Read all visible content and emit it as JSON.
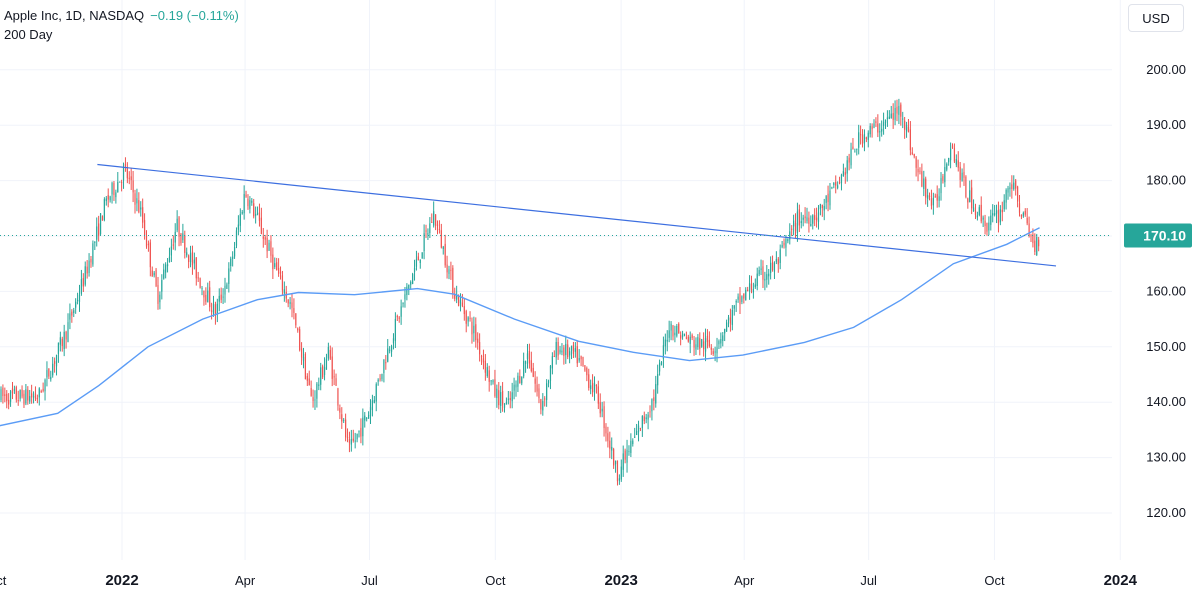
{
  "header": {
    "symbol": "Apple Inc, 1D, NASDAQ",
    "change": "−0.19 (−0.11%)",
    "indicator": "200 Day"
  },
  "currency": "USD",
  "last_price_label": "170.10",
  "colors": {
    "up": "#26a69a",
    "down": "#ef5350",
    "ma": "#5b9cf6",
    "trendline": "#3d6fe0",
    "price_line": "#26a69a",
    "price_label_bg": "#26a69a"
  },
  "chart_data": {
    "type": "candlestick",
    "title": "Apple Inc, 1D, NASDAQ",
    "y_axis": {
      "ticks": [
        120,
        130,
        140,
        150,
        160,
        170,
        180,
        190,
        200
      ],
      "labels": [
        "120.00",
        "130.00",
        "140.00",
        "150.00",
        "160.00",
        "170.00",
        "180.00",
        "190.00",
        "200.00"
      ]
    },
    "x_axis": {
      "ticks": [
        {
          "date": "2021-10-01",
          "label": "Oct",
          "bold": false
        },
        {
          "date": "2022-01-01",
          "label": "2022",
          "bold": true
        },
        {
          "date": "2022-04-01",
          "label": "Apr",
          "bold": false
        },
        {
          "date": "2022-07-01",
          "label": "Jul",
          "bold": false
        },
        {
          "date": "2022-10-01",
          "label": "Oct",
          "bold": false
        },
        {
          "date": "2023-01-01",
          "label": "2023",
          "bold": true
        },
        {
          "date": "2023-04-01",
          "label": "Apr",
          "bold": false
        },
        {
          "date": "2023-07-01",
          "label": "Jul",
          "bold": false
        },
        {
          "date": "2023-10-01",
          "label": "Oct",
          "bold": false
        },
        {
          "date": "2024-01-01",
          "label": "2024",
          "bold": true
        }
      ]
    },
    "last_price": 170.1,
    "price_path": [
      [
        "2021-11-01",
        141
      ],
      [
        "2021-11-20",
        152
      ],
      [
        "2021-12-05",
        163
      ],
      [
        "2021-12-20",
        176
      ],
      [
        "2022-01-03",
        182
      ],
      [
        "2022-01-15",
        174
      ],
      [
        "2022-01-27",
        159
      ],
      [
        "2022-02-10",
        172
      ],
      [
        "2022-02-25",
        163
      ],
      [
        "2022-03-10",
        156
      ],
      [
        "2022-03-20",
        163
      ],
      [
        "2022-04-01",
        178
      ],
      [
        "2022-04-10",
        173
      ],
      [
        "2022-04-25",
        163
      ],
      [
        "2022-05-05",
        157
      ],
      [
        "2022-05-20",
        140
      ],
      [
        "2022-06-01",
        149
      ],
      [
        "2022-06-16",
        131
      ],
      [
        "2022-06-30",
        138
      ],
      [
        "2022-07-15",
        150
      ],
      [
        "2022-07-31",
        162
      ],
      [
        "2022-08-17",
        174
      ],
      [
        "2022-09-01",
        160
      ],
      [
        "2022-09-15",
        153
      ],
      [
        "2022-09-30",
        142
      ],
      [
        "2022-10-10",
        139
      ],
      [
        "2022-10-25",
        149
      ],
      [
        "2022-11-03",
        139
      ],
      [
        "2022-11-15",
        150
      ],
      [
        "2022-11-30",
        148
      ],
      [
        "2022-12-15",
        141
      ],
      [
        "2022-12-29",
        127
      ],
      [
        "2023-01-10",
        133
      ],
      [
        "2023-01-25",
        141
      ],
      [
        "2023-02-05",
        154
      ],
      [
        "2023-02-20",
        151
      ],
      [
        "2023-03-10",
        150
      ],
      [
        "2023-03-28",
        158
      ],
      [
        "2023-04-10",
        162
      ],
      [
        "2023-04-25",
        165
      ],
      [
        "2023-05-10",
        173
      ],
      [
        "2023-05-25",
        174
      ],
      [
        "2023-06-10",
        180
      ],
      [
        "2023-06-25",
        188
      ],
      [
        "2023-07-10",
        190
      ],
      [
        "2023-07-25",
        193
      ],
      [
        "2023-08-05",
        182
      ],
      [
        "2023-08-18",
        175
      ],
      [
        "2023-08-30",
        187
      ],
      [
        "2023-09-10",
        178
      ],
      [
        "2023-09-25",
        172
      ],
      [
        "2023-10-05",
        174
      ],
      [
        "2023-10-12",
        180
      ],
      [
        "2023-10-20",
        175
      ],
      [
        "2023-10-30",
        168
      ],
      [
        "2023-11-03",
        170.1
      ]
    ],
    "ma_200_path": [
      [
        "2021-09-25",
        135.3
      ],
      [
        "2021-11-15",
        138
      ],
      [
        "2021-12-15",
        143
      ],
      [
        "2022-01-20",
        150
      ],
      [
        "2022-03-01",
        155
      ],
      [
        "2022-04-10",
        158.5
      ],
      [
        "2022-05-10",
        159.8
      ],
      [
        "2022-06-20",
        159.4
      ],
      [
        "2022-08-05",
        160.5
      ],
      [
        "2022-09-01",
        159.5
      ],
      [
        "2022-10-15",
        155
      ],
      [
        "2022-12-01",
        151
      ],
      [
        "2023-01-10",
        149
      ],
      [
        "2023-02-20",
        147.5
      ],
      [
        "2023-03-31",
        148.5
      ],
      [
        "2023-05-15",
        150.8
      ],
      [
        "2023-06-20",
        153.5
      ],
      [
        "2023-07-25",
        158.5
      ],
      [
        "2023-09-01",
        165
      ],
      [
        "2023-10-10",
        168.5
      ],
      [
        "2023-11-03",
        171.5
      ]
    ],
    "trendline": {
      "from": [
        "2021-12-14",
        182.9
      ],
      "to": [
        "2023-11-15",
        164.6
      ]
    }
  }
}
